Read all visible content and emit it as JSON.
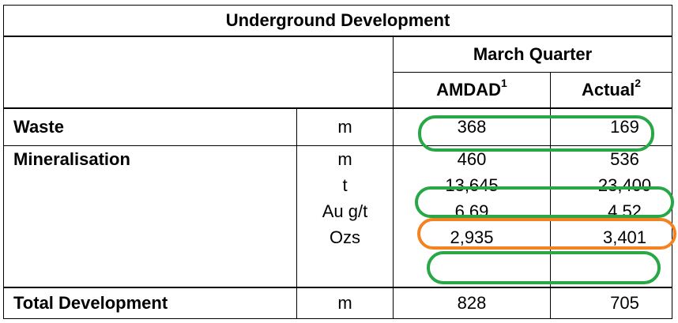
{
  "table": {
    "title": "Underground Development",
    "period_header": "March Quarter",
    "columns": [
      {
        "label": "AMDAD",
        "footnote": "1"
      },
      {
        "label": "Actual",
        "footnote": "2"
      }
    ],
    "waste": {
      "label": "Waste",
      "unit": "m",
      "amdad": "368",
      "actual": "169"
    },
    "mineralisation": {
      "label": "Mineralisation",
      "rows": [
        {
          "unit": "m",
          "amdad": "460",
          "actual": "536"
        },
        {
          "unit": "t",
          "amdad": "13,645",
          "actual": "23,400"
        },
        {
          "unit": "Au g/t",
          "amdad": "6.69",
          "actual": "4.52"
        },
        {
          "unit": "Ozs",
          "amdad": "2,935",
          "actual": "3,401"
        }
      ]
    },
    "total": {
      "label": "Total Development",
      "unit": "m",
      "amdad": "828",
      "actual": "705"
    }
  },
  "highlights": {
    "green_color": "#27a745",
    "orange_color": "#f58220"
  }
}
